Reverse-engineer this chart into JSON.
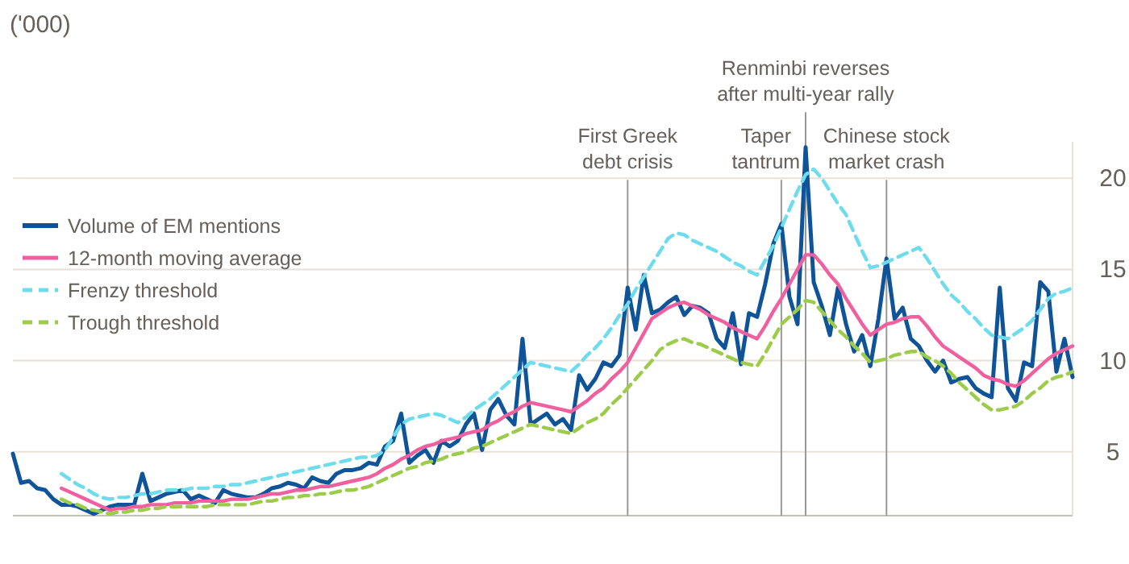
{
  "chart_data": {
    "type": "line",
    "ylabel": "('000)",
    "categories": [
      null,
      null,
      null,
      null,
      null,
      null,
      null,
      null,
      null,
      null,
      null,
      null,
      null,
      null,
      null,
      null,
      null,
      null,
      null,
      null,
      null,
      null,
      null,
      null,
      null,
      null,
      null,
      null,
      null,
      null,
      null,
      null,
      null,
      null,
      null,
      null,
      null,
      null,
      null,
      null,
      null,
      null,
      null,
      null,
      null,
      null,
      null,
      null,
      null,
      null,
      null,
      null,
      null,
      null,
      null,
      null,
      null,
      null,
      null,
      null,
      null,
      null,
      null,
      null,
      null,
      null,
      null,
      null,
      null,
      null,
      null,
      null,
      null,
      null,
      null,
      null,
      null,
      null,
      null,
      null,
      null,
      null,
      null,
      null,
      null,
      null,
      null,
      null,
      null,
      null,
      null,
      null,
      null,
      null,
      null,
      null,
      null,
      null,
      null,
      null,
      null,
      null,
      null,
      null,
      null,
      null,
      null,
      null,
      null,
      null,
      null,
      null,
      null,
      null,
      null,
      null,
      null,
      null,
      null,
      null,
      null,
      null,
      null,
      null,
      null,
      null,
      null,
      null,
      null,
      null,
      null,
      null
    ],
    "series": [
      {
        "name": "Volume of EM mentions",
        "color": "#0f5499",
        "line_style": "solid",
        "values": [
          4.9,
          3.3,
          3.4,
          3.0,
          2.9,
          2.4,
          2.1,
          2.1,
          2.0,
          1.8,
          1.6,
          1.8,
          2.0,
          2.1,
          2.1,
          2.1,
          3.8,
          2.3,
          2.5,
          2.7,
          2.8,
          2.9,
          2.4,
          2.6,
          2.4,
          2.2,
          2.9,
          2.7,
          2.6,
          2.5,
          2.5,
          2.7,
          3.0,
          3.1,
          3.3,
          3.2,
          3.0,
          3.6,
          3.4,
          3.3,
          3.8,
          4.0,
          4.0,
          4.1,
          4.4,
          4.3,
          5.3,
          5.6,
          7.1,
          4.4,
          4.8,
          5.1,
          4.4,
          5.6,
          5.3,
          5.6,
          6.5,
          7.1,
          5.1,
          7.3,
          7.9,
          7.0,
          6.5,
          11.2,
          6.5,
          6.8,
          7.1,
          6.5,
          6.8,
          6.2,
          9.2,
          8.4,
          9.0,
          9.9,
          9.7,
          10.3,
          14.0,
          11.7,
          14.7,
          12.6,
          12.8,
          13.2,
          13.5,
          12.5,
          13.0,
          12.9,
          12.6,
          11.2,
          10.7,
          12.6,
          9.8,
          12.6,
          12.4,
          14.2,
          16.4,
          17.5,
          13.5,
          12.0,
          21.7,
          14.3,
          13.0,
          11.4,
          14.0,
          12.0,
          10.5,
          11.4,
          9.7,
          12.3,
          15.6,
          12.3,
          12.9,
          11.2,
          10.8,
          10.0,
          9.4,
          10.0,
          8.8,
          9.0,
          9.1,
          8.5,
          8.2,
          8.0,
          14.0,
          8.5,
          7.8,
          9.9,
          9.7,
          14.3,
          13.8,
          9.4,
          11.2,
          9.1
        ]
      },
      {
        "name": "12-month moving average",
        "color": "#f0609e",
        "line_style": "solid",
        "values": [
          null,
          null,
          null,
          null,
          null,
          null,
          3.0,
          2.8,
          2.6,
          2.4,
          2.2,
          2.0,
          1.8,
          1.9,
          1.9,
          2.0,
          2.0,
          2.1,
          2.1,
          2.1,
          2.2,
          2.2,
          2.2,
          2.3,
          2.3,
          2.3,
          2.3,
          2.4,
          2.4,
          2.4,
          2.5,
          2.6,
          2.7,
          2.7,
          2.8,
          2.9,
          2.9,
          3.0,
          3.1,
          3.1,
          3.2,
          3.3,
          3.4,
          3.5,
          3.6,
          3.8,
          4.1,
          4.3,
          4.6,
          4.8,
          5.1,
          5.3,
          5.4,
          5.6,
          5.7,
          5.8,
          6.0,
          6.1,
          6.2,
          6.5,
          6.7,
          7.0,
          7.2,
          7.5,
          7.7,
          7.6,
          7.5,
          7.4,
          7.3,
          7.2,
          7.5,
          7.8,
          8.2,
          8.5,
          9.0,
          9.4,
          9.9,
          10.7,
          11.5,
          12.3,
          12.6,
          12.9,
          13.1,
          13.2,
          13.0,
          12.8,
          12.5,
          12.3,
          12.1,
          11.8,
          11.6,
          11.4,
          11.2,
          11.9,
          12.7,
          13.4,
          14.2,
          15.0,
          15.8,
          15.8,
          15.3,
          14.7,
          14.2,
          13.4,
          12.7,
          12.0,
          11.4,
          11.7,
          12.0,
          12.1,
          12.3,
          12.4,
          12.4,
          11.9,
          11.3,
          10.8,
          10.5,
          10.2,
          9.9,
          9.6,
          9.2,
          9.0,
          8.9,
          8.7,
          8.6,
          8.9,
          9.3,
          9.7,
          10.1,
          10.4,
          10.6,
          10.8
        ]
      },
      {
        "name": "Frenzy threshold",
        "color": "#6ddcec",
        "line_style": "dashed",
        "values": [
          null,
          null,
          null,
          null,
          null,
          null,
          3.8,
          3.5,
          3.2,
          3.0,
          2.7,
          2.5,
          2.4,
          2.5,
          2.5,
          2.6,
          2.7,
          2.7,
          2.8,
          2.9,
          2.9,
          2.9,
          3.0,
          3.0,
          3.0,
          3.1,
          3.1,
          3.2,
          3.2,
          3.3,
          3.4,
          3.5,
          3.6,
          3.7,
          3.8,
          3.9,
          4.0,
          4.1,
          4.2,
          4.3,
          4.4,
          4.5,
          4.6,
          4.7,
          4.7,
          4.8,
          5.1,
          5.8,
          6.5,
          6.8,
          6.9,
          7.0,
          7.1,
          7.0,
          6.8,
          6.6,
          6.9,
          7.3,
          7.6,
          7.9,
          8.3,
          8.7,
          9.1,
          9.5,
          9.9,
          9.8,
          9.7,
          9.6,
          9.5,
          9.4,
          9.8,
          10.3,
          10.7,
          11.2,
          11.8,
          12.5,
          13.1,
          13.9,
          14.6,
          15.3,
          16.0,
          16.7,
          17.0,
          16.9,
          16.6,
          16.4,
          16.2,
          16.0,
          15.7,
          15.4,
          15.2,
          14.9,
          14.7,
          15.5,
          16.3,
          17.3,
          18.3,
          19.3,
          20.2,
          20.5,
          20.0,
          19.3,
          18.6,
          18.0,
          17.0,
          16.0,
          15.1,
          15.2,
          15.4,
          15.6,
          15.8,
          16.0,
          16.2,
          15.6,
          14.9,
          14.2,
          13.6,
          13.2,
          12.7,
          12.3,
          11.8,
          11.4,
          11.3,
          11.2,
          11.5,
          11.8,
          12.2,
          12.8,
          13.4,
          13.7,
          13.8,
          14.0
        ]
      },
      {
        "name": "Trough threshold",
        "color": "#9ccc4a",
        "line_style": "dashed",
        "values": [
          null,
          null,
          null,
          null,
          null,
          null,
          2.4,
          2.2,
          2.1,
          1.9,
          1.8,
          1.7,
          1.6,
          1.7,
          1.7,
          1.8,
          1.8,
          1.9,
          1.9,
          2.0,
          2.0,
          2.0,
          2.0,
          2.0,
          2.0,
          2.1,
          2.1,
          2.1,
          2.1,
          2.1,
          2.2,
          2.3,
          2.3,
          2.4,
          2.5,
          2.5,
          2.6,
          2.6,
          2.7,
          2.7,
          2.8,
          2.9,
          2.9,
          3.0,
          3.1,
          3.3,
          3.5,
          3.7,
          3.9,
          4.1,
          4.2,
          4.4,
          4.5,
          4.6,
          4.8,
          4.9,
          5.0,
          5.2,
          5.3,
          5.5,
          5.7,
          5.9,
          6.1,
          6.3,
          6.5,
          6.4,
          6.3,
          6.2,
          6.1,
          6.0,
          6.3,
          6.6,
          6.8,
          7.1,
          7.6,
          8.0,
          8.5,
          9.0,
          9.5,
          10.0,
          10.6,
          10.9,
          11.1,
          11.2,
          11.0,
          10.9,
          10.7,
          10.5,
          10.3,
          10.1,
          9.9,
          9.8,
          9.7,
          10.4,
          11.2,
          12.0,
          12.4,
          12.8,
          13.3,
          13.2,
          12.7,
          12.2,
          11.7,
          11.3,
          10.8,
          10.4,
          9.9,
          10.0,
          10.1,
          10.3,
          10.4,
          10.5,
          10.5,
          10.2,
          10.0,
          9.7,
          9.3,
          8.8,
          8.4,
          8.0,
          7.6,
          7.3,
          7.3,
          7.4,
          7.5,
          7.8,
          8.2,
          8.5,
          8.9,
          9.1,
          9.2,
          9.4
        ]
      }
    ],
    "ylim": [
      1.5,
      22
    ],
    "yticks": [
      5,
      10,
      15,
      20
    ],
    "grid": "y",
    "legend": "top left",
    "tick_labels": "y",
    "annotations": [
      "First Greek\ndebt crisis",
      "Taper\ntantrum",
      "Renminbi reverses\nafter multi-year rally",
      "Chinese stock\nmarket crash"
    ]
  }
}
